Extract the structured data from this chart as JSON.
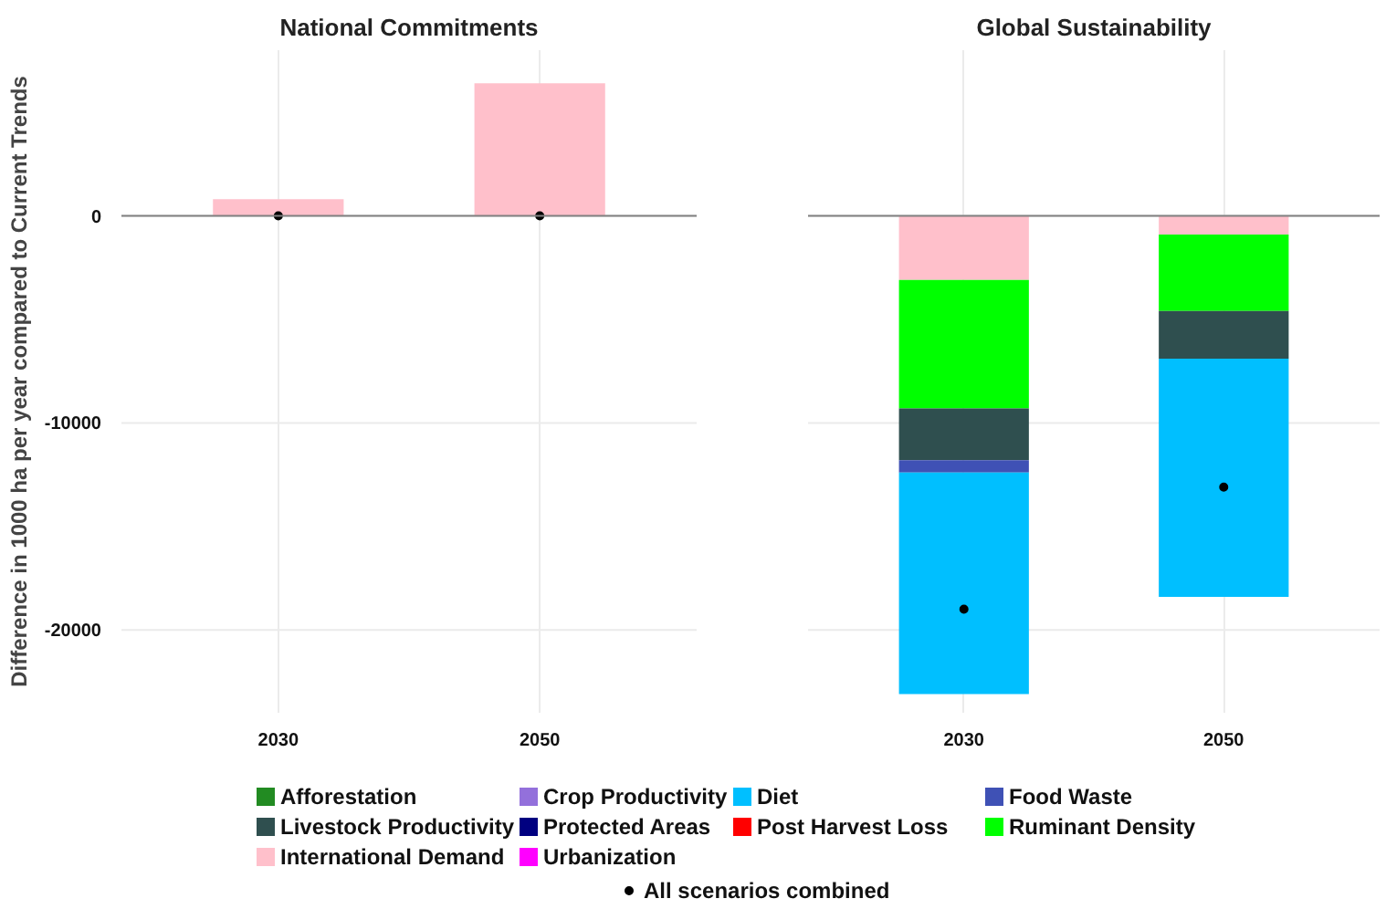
{
  "chart_data": [
    {
      "type": "bar",
      "stacked": true,
      "title": "National Commitments",
      "ylabel": "Difference in 1000 ha per year compared to Current Trends",
      "categories": [
        "2030",
        "2050"
      ],
      "ylim": [
        -24000,
        8000
      ],
      "yticks": [
        0,
        -10000,
        -20000
      ],
      "grid": true,
      "legend": "bottom",
      "ref_lines": [
        {
          "axis": "y",
          "value": 0,
          "color": "#808080"
        }
      ],
      "series": [
        {
          "name": "Urbanization",
          "color": "#ff00ff",
          "values": [
            null,
            null
          ]
        },
        {
          "name": "International Demand",
          "color": "#ffc0cb",
          "values": [
            800,
            6400
          ]
        },
        {
          "name": "Ruminant Density",
          "color": "#00ff00",
          "values": [
            null,
            null
          ]
        },
        {
          "name": "Post Harvest Loss",
          "color": "#ff0000",
          "values": [
            null,
            null
          ]
        },
        {
          "name": "Protected Areas",
          "color": "#000080",
          "values": [
            null,
            null
          ]
        },
        {
          "name": "Livestock Productivity",
          "color": "#2f4f4f",
          "values": [
            null,
            null
          ]
        },
        {
          "name": "Food Waste",
          "color": "#3f51b5",
          "values": [
            null,
            null
          ]
        },
        {
          "name": "Diet",
          "color": "#00bfff",
          "values": [
            null,
            null
          ]
        },
        {
          "name": "Crop Productivity",
          "color": "#9370db",
          "values": [
            null,
            null
          ]
        },
        {
          "name": "Afforestation",
          "color": "#228b22",
          "values": [
            null,
            null
          ]
        },
        {
          "name": "All scenarios combined",
          "type": "scatter",
          "color": "#000000",
          "values": [
            0,
            0
          ]
        }
      ]
    },
    {
      "type": "bar",
      "stacked": true,
      "title": "Global Sustainability",
      "categories": [
        "2030",
        "2050"
      ],
      "ylim": [
        -24000,
        8000
      ],
      "yticks": [
        0,
        -10000,
        -20000
      ],
      "tick_labels": "x",
      "grid": true,
      "ref_lines": [
        {
          "axis": "y",
          "value": 0,
          "color": "#808080"
        }
      ],
      "series": [
        {
          "color": "#ffc0cb",
          "values": [
            -3100,
            -900
          ]
        },
        {
          "color": "#00ff00",
          "values": [
            -6200,
            -3700
          ]
        },
        {
          "color": "#2f4f4f",
          "values": [
            -2500,
            -2300
          ]
        },
        {
          "color": "#3f51b5",
          "values": [
            -600,
            null
          ]
        },
        {
          "color": "#00bfff",
          "values": [
            -10700,
            -11500
          ]
        },
        {
          "type": "scatter",
          "color": "#000000",
          "values": [
            -19000,
            -13100
          ]
        }
      ]
    }
  ]
}
